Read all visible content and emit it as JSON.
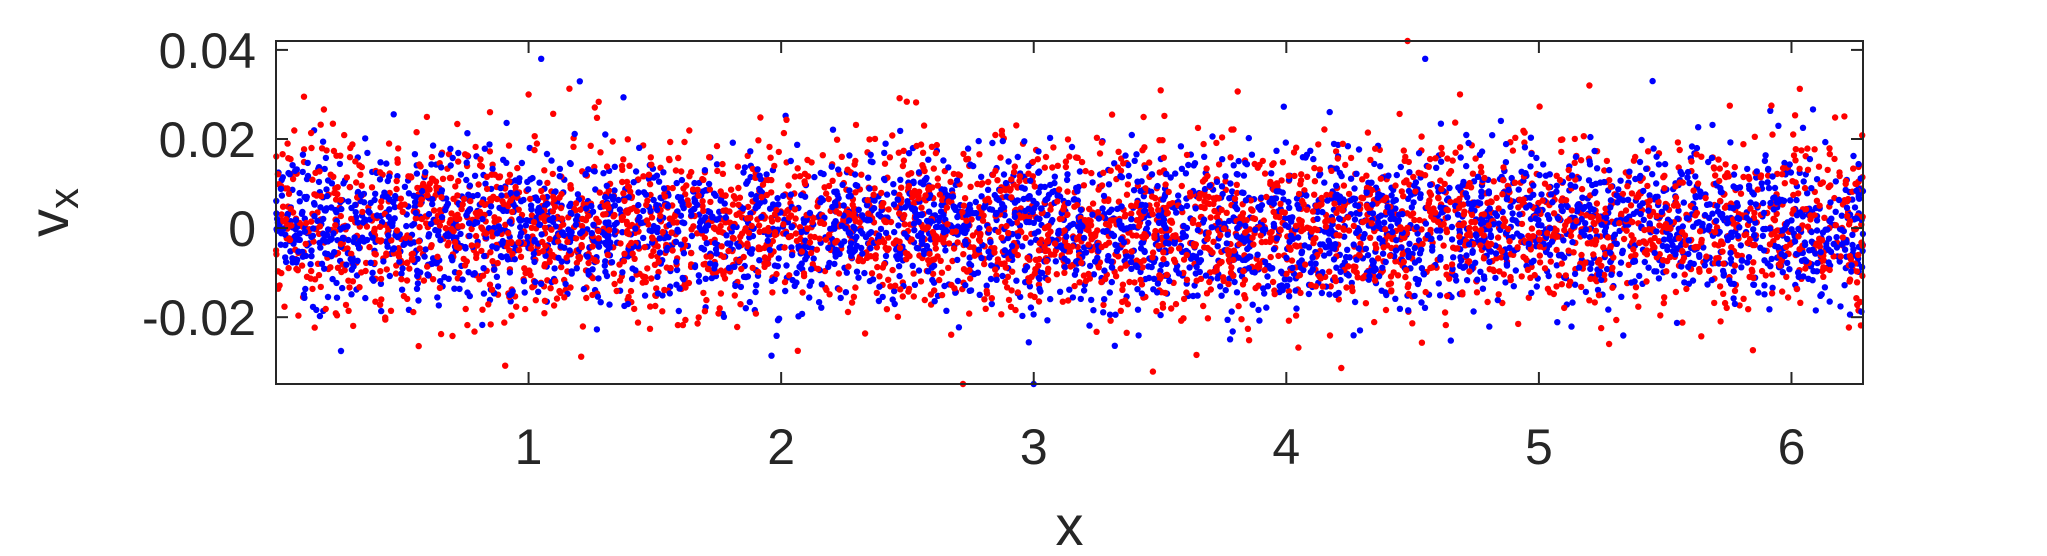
{
  "chart_data": {
    "type": "scatter",
    "title": "",
    "xlabel": "x",
    "ylabel": "v",
    "ylabel_subscript": "x",
    "xlim": [
      0,
      6.2832
    ],
    "ylim": [
      -0.035,
      0.042
    ],
    "x_ticks": [
      1,
      2,
      3,
      4,
      5,
      6
    ],
    "x_tick_labels": [
      "1",
      "2",
      "3",
      "4",
      "5",
      "6"
    ],
    "y_ticks": [
      -0.02,
      0,
      0.02,
      0.04
    ],
    "y_tick_labels": [
      "-0.02",
      "0",
      "0.02",
      "0.04"
    ],
    "grid": false,
    "legend": "none",
    "box": true,
    "point_count_per_series": 3200,
    "series": [
      {
        "color": "#ff0000",
        "spread_profile": {
          "x": [
            0,
            0.5,
            1,
            1.5,
            2,
            2.5,
            3,
            3.5,
            4,
            4.5,
            5,
            5.5,
            6,
            6.2832
          ],
          "mean": [
            0.001,
            0.001,
            0.0,
            0.0,
            0.001,
            0.001,
            0.0,
            0.001,
            0.0,
            0.001,
            0.001,
            0.0,
            0.001,
            0.001
          ],
          "std": [
            0.0095,
            0.0098,
            0.0095,
            0.0092,
            0.0092,
            0.0095,
            0.0098,
            0.0098,
            0.0095,
            0.0092,
            0.009,
            0.0092,
            0.0098,
            0.0098
          ]
        },
        "outliers": [
          {
            "x": 4.48,
            "y": 0.042
          },
          {
            "x": 2.72,
            "y": -0.035
          },
          {
            "x": 1.0,
            "y": 0.03
          },
          {
            "x": 5.2,
            "y": 0.032
          }
        ]
      },
      {
        "color": "#0000ff",
        "spread_profile": {
          "x": [
            0,
            0.5,
            1,
            1.5,
            2,
            2.5,
            3,
            3.5,
            4,
            4.5,
            5,
            5.5,
            6,
            6.2832
          ],
          "mean": [
            0.0,
            0.001,
            0.001,
            0.0,
            0.0,
            0.0,
            0.0,
            -0.001,
            -0.001,
            0.0,
            0.001,
            0.001,
            0.0,
            0.0
          ],
          "std": [
            0.0085,
            0.0088,
            0.0088,
            0.0082,
            0.008,
            0.0082,
            0.0088,
            0.0092,
            0.009,
            0.0085,
            0.0082,
            0.0085,
            0.0088,
            0.0088
          ]
        },
        "outliers": [
          {
            "x": 1.05,
            "y": 0.038
          },
          {
            "x": 4.55,
            "y": 0.038
          },
          {
            "x": 3.0,
            "y": -0.035
          },
          {
            "x": 5.45,
            "y": 0.033
          }
        ]
      }
    ]
  }
}
